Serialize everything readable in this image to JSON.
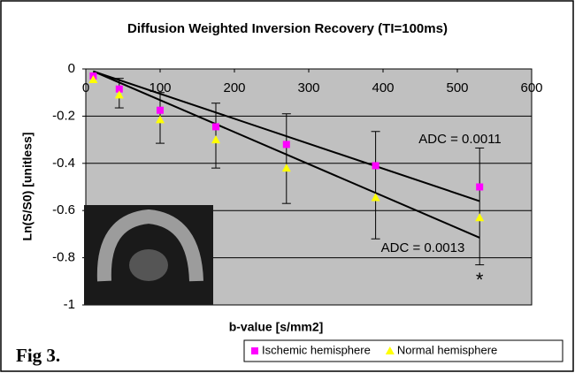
{
  "chart_data": {
    "type": "scatter",
    "title": "Diffusion Weighted Inversion Recovery (TI=100ms)",
    "x_label": "b-value [s/mm2]",
    "y_label": "Ln(S/S0) [unitless]",
    "xlim": [
      0,
      600
    ],
    "xticks": [
      0,
      100,
      200,
      300,
      400,
      500,
      600
    ],
    "ylim": [
      -1,
      0
    ],
    "yticks": [
      0,
      -0.2,
      -0.4,
      -0.6,
      -0.8,
      -1
    ],
    "grid": true,
    "plot_background": "#c0c0c0",
    "series": [
      {
        "name": "Ischemic hemisphere",
        "color": "#ff00ff",
        "marker": "square",
        "x": [
          10,
          45,
          100,
          175,
          270,
          390,
          530
        ],
        "values": [
          -0.03,
          -0.085,
          -0.175,
          -0.245,
          -0.32,
          -0.41,
          -0.5
        ]
      },
      {
        "name": "Normal hemisphere",
        "color": "#ffff00",
        "marker": "triangle",
        "x": [
          10,
          45,
          100,
          175,
          270,
          390,
          530
        ],
        "values": [
          -0.045,
          -0.11,
          -0.215,
          -0.3,
          -0.42,
          -0.545,
          -0.63
        ]
      }
    ],
    "error_bars": {
      "x": [
        45,
        100,
        175,
        270,
        390,
        530
      ],
      "low": [
        -0.165,
        -0.315,
        -0.42,
        -0.57,
        -0.72,
        -0.83
      ],
      "high": [
        -0.04,
        -0.1,
        -0.145,
        -0.19,
        -0.265,
        -0.335
      ]
    },
    "trendlines": [
      {
        "label": "ADC = 0.0011",
        "x": [
          10,
          530
        ],
        "y": [
          -0.01,
          -0.56
        ]
      },
      {
        "label": "ADC = 0.0013",
        "x": [
          10,
          530
        ],
        "y": [
          -0.01,
          -0.715
        ]
      }
    ],
    "annotation": "*",
    "legend": "bottom-right",
    "figure_label": "Fig 3."
  }
}
